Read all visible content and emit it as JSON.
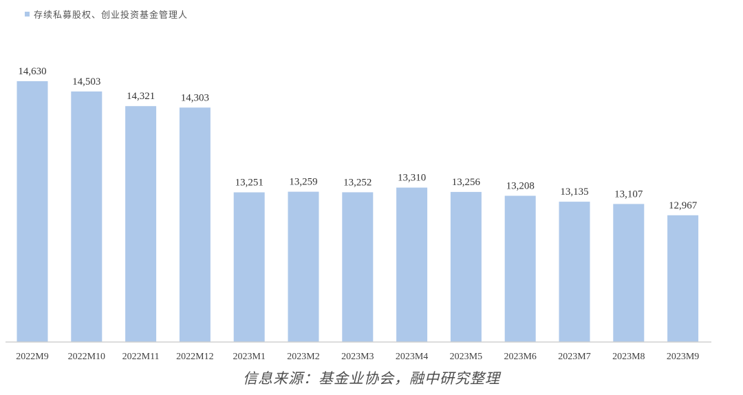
{
  "chart_data": {
    "type": "bar",
    "title": "",
    "xlabel": "",
    "ylabel": "",
    "ylim": [
      0,
      14630
    ],
    "grid": false,
    "legend_position": "top-left",
    "categories": [
      "2022M9",
      "2022M10",
      "2022M11",
      "2022M12",
      "2023M1",
      "2023M2",
      "2023M3",
      "2023M4",
      "2023M5",
      "2023M6",
      "2023M7",
      "2023M8",
      "2023M9"
    ],
    "series": [
      {
        "name": "存续私募股权、创业投资基金管理人",
        "color": "#adc8ea",
        "values": [
          14630,
          14503,
          14321,
          14303,
          13251,
          13259,
          13252,
          13310,
          13256,
          13208,
          13135,
          13107,
          12967
        ],
        "labels": [
          "14,630",
          "14,503",
          "14,321",
          "14,303",
          "13,251",
          "13,259",
          "13,252",
          "13,310",
          "13,256",
          "13,208",
          "13,135",
          "13,107",
          "12,967"
        ]
      }
    ],
    "axis_line_color": "#d0d0d0",
    "label_color": "#333333",
    "tick_color": "#404040"
  },
  "source_note": "信息来源：基金业协会，融中研究整理"
}
